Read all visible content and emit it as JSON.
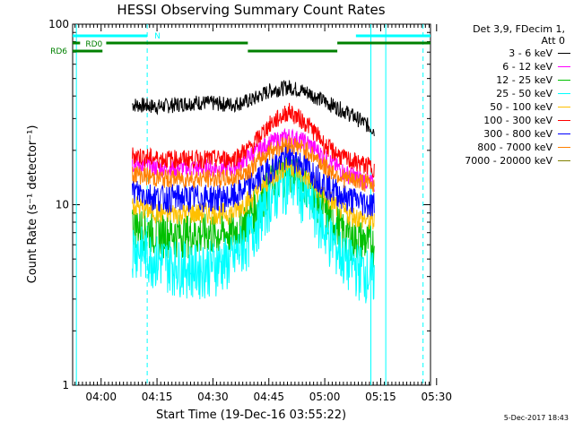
{
  "chart_data": {
    "type": "line",
    "title": "HESSI Observing Summary Count Rates",
    "xlabel": "Start Time (19-Dec-16 03:55:22)",
    "ylabel": "Count Rate (s⁻¹ detector⁻¹)",
    "yscale": "log",
    "ylim": [
      1,
      100
    ],
    "xlim_minutes": [
      -3,
      93
    ],
    "x_ticks": [
      "04:00",
      "04:15",
      "04:30",
      "04:45",
      "05:00",
      "05:15",
      "05:30"
    ],
    "y_ticks": [
      "1",
      "10",
      "100"
    ],
    "legend_header": [
      "Det 3,9, FDecim 1,",
      "Att 0"
    ],
    "legend_placement": "right",
    "series": [
      {
        "name": "3 - 6 keV",
        "color": "#000000",
        "points": [
          [
            13,
            36
          ],
          [
            20,
            35
          ],
          [
            30,
            37
          ],
          [
            40,
            36
          ],
          [
            45,
            38
          ],
          [
            50,
            43
          ],
          [
            55,
            45
          ],
          [
            60,
            42
          ],
          [
            65,
            37
          ],
          [
            70,
            33
          ],
          [
            78,
            26
          ]
        ]
      },
      {
        "name": "6 - 12 keV",
        "color": "#ff00ff",
        "points": [
          [
            13,
            17
          ],
          [
            20,
            16
          ],
          [
            30,
            16
          ],
          [
            40,
            16
          ],
          [
            45,
            19
          ],
          [
            50,
            22
          ],
          [
            55,
            24
          ],
          [
            60,
            22
          ],
          [
            65,
            18
          ],
          [
            70,
            15
          ],
          [
            78,
            13
          ]
        ]
      },
      {
        "name": "12 - 25 keV",
        "color": "#00c000",
        "points": [
          [
            13,
            8
          ],
          [
            20,
            7
          ],
          [
            30,
            7
          ],
          [
            40,
            7
          ],
          [
            45,
            9
          ],
          [
            50,
            13
          ],
          [
            55,
            16
          ],
          [
            60,
            13
          ],
          [
            65,
            9
          ],
          [
            70,
            7
          ],
          [
            78,
            6
          ]
        ]
      },
      {
        "name": "25 - 50 keV",
        "color": "#00ffff",
        "points": [
          [
            13,
            6
          ],
          [
            20,
            5
          ],
          [
            30,
            4.5
          ],
          [
            40,
            5
          ],
          [
            45,
            7
          ],
          [
            50,
            11
          ],
          [
            55,
            14
          ],
          [
            60,
            11
          ],
          [
            65,
            7
          ],
          [
            70,
            5
          ],
          [
            78,
            4
          ]
        ]
      },
      {
        "name": "50 - 100 keV",
        "color": "#ffc000",
        "points": [
          [
            13,
            10
          ],
          [
            20,
            9
          ],
          [
            30,
            9
          ],
          [
            40,
            9
          ],
          [
            45,
            11
          ],
          [
            50,
            14
          ],
          [
            55,
            17
          ],
          [
            60,
            14
          ],
          [
            65,
            11
          ],
          [
            70,
            9
          ],
          [
            78,
            8
          ]
        ]
      },
      {
        "name": "100 - 300 keV",
        "color": "#ff0000",
        "points": [
          [
            13,
            19
          ],
          [
            20,
            18
          ],
          [
            30,
            18
          ],
          [
            40,
            18
          ],
          [
            45,
            21
          ],
          [
            50,
            28
          ],
          [
            55,
            33
          ],
          [
            60,
            28
          ],
          [
            65,
            21
          ],
          [
            70,
            18
          ],
          [
            78,
            16
          ]
        ]
      },
      {
        "name": "300 - 800 keV",
        "color": "#0000ff",
        "points": [
          [
            13,
            12
          ],
          [
            20,
            11
          ],
          [
            30,
            11
          ],
          [
            40,
            11
          ],
          [
            45,
            13
          ],
          [
            50,
            16
          ],
          [
            55,
            19
          ],
          [
            60,
            16
          ],
          [
            65,
            13
          ],
          [
            70,
            11
          ],
          [
            78,
            10
          ]
        ]
      },
      {
        "name": "800 - 7000 keV",
        "color": "#ff8000",
        "points": [
          [
            13,
            15
          ],
          [
            20,
            14
          ],
          [
            30,
            14
          ],
          [
            40,
            14
          ],
          [
            45,
            16
          ],
          [
            50,
            20
          ],
          [
            55,
            22
          ],
          [
            60,
            20
          ],
          [
            65,
            16
          ],
          [
            70,
            14
          ],
          [
            78,
            13
          ]
        ]
      },
      {
        "name": "7000 - 20000 keV",
        "color": "#808000",
        "points": []
      }
    ],
    "flags": [
      {
        "label": "",
        "color": "#00ffff",
        "level": "top",
        "segments": [
          [
            -3,
            17
          ],
          [
            73,
            93
          ]
        ]
      },
      {
        "label": "N",
        "color": "#00ffff",
        "level": "top",
        "segments": []
      },
      {
        "label": "RD0",
        "color": "#008000",
        "level": "mid",
        "segments": [
          [
            -3,
            -1
          ],
          [
            6,
            44
          ],
          [
            68,
            93
          ]
        ]
      },
      {
        "label": "RD6",
        "color": "#008000",
        "level": "low",
        "segments": [
          [
            -3,
            5
          ],
          [
            44,
            68
          ]
        ]
      }
    ],
    "vlines": [
      {
        "x": 17,
        "color": "#00ffff",
        "style": "dashed"
      },
      {
        "x": 77,
        "color": "#00ffff",
        "style": "solid"
      },
      {
        "x": 81,
        "color": "#00ffff",
        "style": "solid"
      },
      {
        "x": 91,
        "color": "#00ffff",
        "style": "dashed"
      },
      {
        "x": -2,
        "color": "#00ffff",
        "style": "solid"
      }
    ],
    "grid": false
  },
  "footer": {
    "timestamp": "5-Dec-2017 18:43"
  }
}
